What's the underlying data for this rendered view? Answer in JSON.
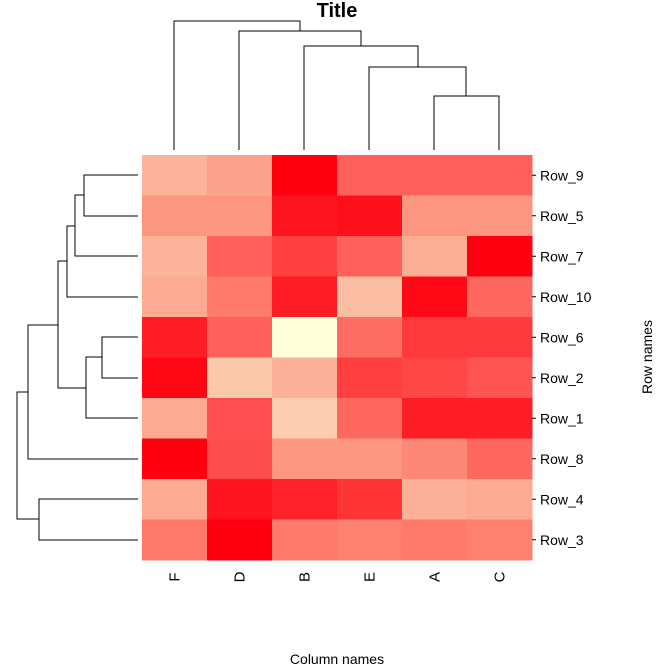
{
  "chart_data": {
    "type": "heatmap",
    "title": "Title",
    "xlabel": "Column names",
    "ylabel": "Row names",
    "columns": [
      "F",
      "D",
      "B",
      "E",
      "A",
      "C"
    ],
    "rows": [
      "Row_9",
      "Row_5",
      "Row_7",
      "Row_10",
      "Row_6",
      "Row_2",
      "Row_1",
      "Row_8",
      "Row_4",
      "Row_3"
    ],
    "values": [
      [
        0.3,
        0.4,
        1.0,
        0.65,
        0.65,
        0.65
      ],
      [
        0.45,
        0.45,
        0.93,
        0.95,
        0.45,
        0.45
      ],
      [
        0.3,
        0.65,
        0.78,
        0.65,
        0.33,
        1.0
      ],
      [
        0.35,
        0.55,
        0.9,
        0.25,
        0.97,
        0.62
      ],
      [
        0.9,
        0.65,
        0.0,
        0.6,
        0.8,
        0.8
      ],
      [
        0.98,
        0.2,
        0.32,
        0.78,
        0.75,
        0.7
      ],
      [
        0.35,
        0.72,
        0.18,
        0.62,
        0.9,
        0.9
      ],
      [
        1.0,
        0.73,
        0.45,
        0.45,
        0.5,
        0.62
      ],
      [
        0.35,
        0.93,
        0.88,
        0.82,
        0.32,
        0.35
      ],
      [
        0.55,
        1.0,
        0.55,
        0.53,
        0.55,
        0.53
      ]
    ],
    "colormap": [
      "#FFFFD9",
      "#FCD4B4",
      "#FCB69C",
      "#FC9C86",
      "#FF7466",
      "#FF5050",
      "#FF2A2E",
      "#FF0010"
    ],
    "dendrograms": {
      "rows": true,
      "columns": true
    },
    "legend": "none",
    "grid": false
  }
}
